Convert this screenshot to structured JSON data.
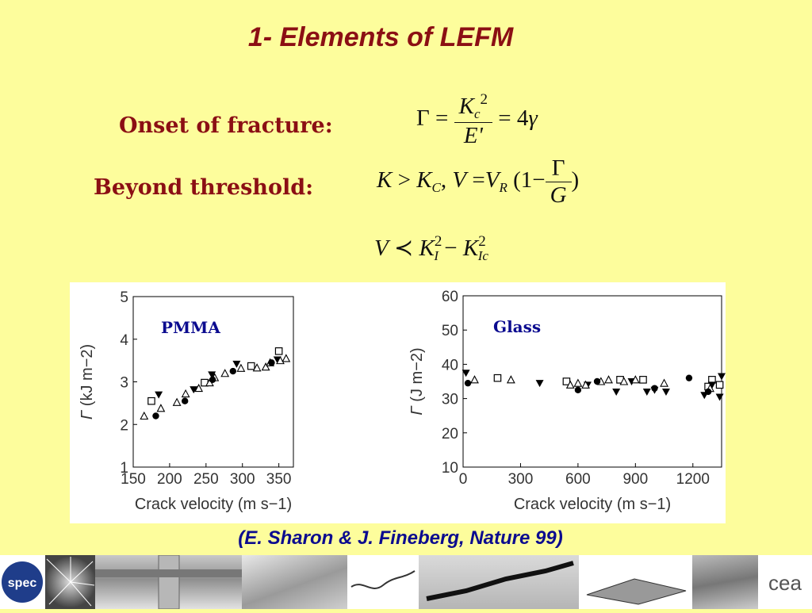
{
  "title": "1- Elements of LEFM",
  "labels": {
    "onset": "Onset of fracture:",
    "beyond": "Beyond threshold:"
  },
  "equations": {
    "onset": {
      "lhs": "Γ",
      "eq": "=",
      "num_K": "K",
      "num_sub": "c",
      "num_sup": "2",
      "den": "E'",
      "eq2": "=",
      "rhs": "4",
      "gamma": "γ"
    },
    "beyond": {
      "K": "K",
      "gt": ">",
      "Kc": "K",
      "Kc_sub": "C",
      "comma": ",",
      "V": "V",
      "eq": "=",
      "VR": "V",
      "VR_sub": "R",
      "open": "(1−",
      "frac_num": "Γ",
      "frac_den": "G",
      "close": ")"
    },
    "scaling": {
      "V": "V",
      "prec": "≺",
      "K1": "K",
      "K1_sub": "I",
      "K1_sup": "2",
      "minus": "−",
      "K2": "K",
      "K2_sub": "Ic",
      "K2_sup": "2"
    }
  },
  "citation": "(E. Sharon & J. Fineberg, Nature 99)",
  "chart_data": [
    {
      "type": "scatter",
      "annotation": "PMMA",
      "xlabel": "Crack velocity (m s−1)",
      "ylabel_symbol": "Γ",
      "ylabel_unit": "(kJ m−2)",
      "xlim": [
        150,
        370
      ],
      "ylim": [
        1,
        5
      ],
      "xticks": [
        150,
        200,
        250,
        300,
        350
      ],
      "yticks": [
        1,
        2,
        3,
        4,
        5
      ],
      "series": [
        {
          "marker": "open-square",
          "points": [
            [
              175,
              2.55
            ],
            [
              248,
              2.98
            ],
            [
              312,
              3.37
            ],
            [
              350,
              3.72
            ]
          ]
        },
        {
          "marker": "filled-down-triangle",
          "points": [
            [
              185,
              2.7
            ],
            [
              233,
              2.82
            ],
            [
              258,
              3.17
            ],
            [
              292,
              3.42
            ],
            [
              348,
              3.52
            ]
          ]
        },
        {
          "marker": "open-triangle",
          "points": [
            [
              165,
              2.2
            ],
            [
              188,
              2.38
            ],
            [
              210,
              2.52
            ],
            [
              222,
              2.72
            ],
            [
              240,
              2.85
            ],
            [
              255,
              2.98
            ],
            [
              262,
              3.1
            ],
            [
              276,
              3.2
            ],
            [
              298,
              3.32
            ],
            [
              320,
              3.33
            ],
            [
              332,
              3.35
            ],
            [
              338,
              3.45
            ],
            [
              352,
              3.5
            ],
            [
              360,
              3.55
            ]
          ]
        },
        {
          "marker": "filled-circle",
          "points": [
            [
              181,
              2.2
            ],
            [
              221,
              2.55
            ],
            [
              259,
              3.05
            ],
            [
              287,
              3.25
            ],
            [
              340,
              3.45
            ]
          ]
        }
      ]
    },
    {
      "type": "scatter",
      "annotation": "Glass",
      "xlabel": "Crack velocity (m s−1)",
      "ylabel_symbol": "Γ",
      "ylabel_unit": "(J m−2)",
      "xlim": [
        0,
        1350
      ],
      "ylim": [
        10,
        60
      ],
      "xticks": [
        0,
        300,
        600,
        900,
        1200
      ],
      "yticks": [
        10,
        20,
        30,
        40,
        50,
        60
      ],
      "series": [
        {
          "marker": "open-square",
          "points": [
            [
              180,
              36
            ],
            [
              540,
              35
            ],
            [
              820,
              35.5
            ],
            [
              940,
              35.5
            ],
            [
              1280,
              33.5
            ],
            [
              1300,
              35.5
            ],
            [
              1340,
              34
            ]
          ]
        },
        {
          "marker": "filled-down-triangle",
          "points": [
            [
              15,
              37.5
            ],
            [
              400,
              34.5
            ],
            [
              650,
              34
            ],
            [
              800,
              32
            ],
            [
              880,
              35
            ],
            [
              960,
              32
            ],
            [
              1000,
              32.5
            ],
            [
              1060,
              32
            ],
            [
              1260,
              31
            ],
            [
              1300,
              34
            ],
            [
              1340,
              30.5
            ],
            [
              1350,
              36.5
            ]
          ]
        },
        {
          "marker": "open-triangle",
          "points": [
            [
              60,
              35.5
            ],
            [
              250,
              35.5
            ],
            [
              560,
              34
            ],
            [
              600,
              34.5
            ],
            [
              640,
              34
            ],
            [
              720,
              35
            ],
            [
              760,
              35.5
            ],
            [
              840,
              35
            ],
            [
              900,
              35.5
            ],
            [
              1050,
              34.5
            ],
            [
              1290,
              33
            ]
          ]
        },
        {
          "marker": "filled-circle",
          "points": [
            [
              25,
              34.5
            ],
            [
              600,
              32.5
            ],
            [
              700,
              35
            ],
            [
              1000,
              33
            ],
            [
              1180,
              36
            ],
            [
              1280,
              32
            ]
          ]
        }
      ]
    }
  ]
}
